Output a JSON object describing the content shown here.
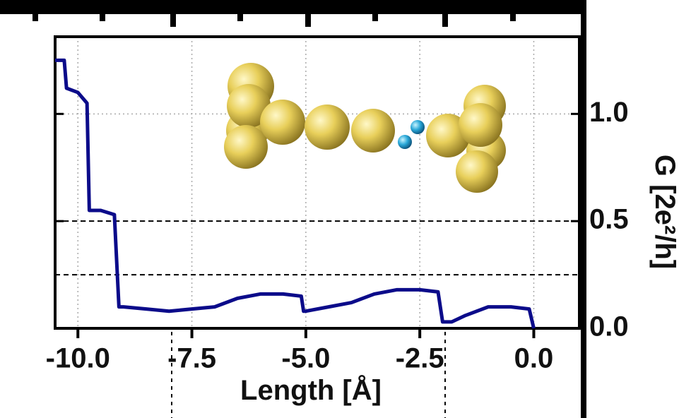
{
  "chart_data": {
    "type": "line",
    "x_label": "Length [Å]",
    "y_label": "G [2e²/h]",
    "x": [
      -10.5,
      -10.3,
      -10.25,
      -10.0,
      -9.8,
      -9.75,
      -9.5,
      -9.2,
      -9.1,
      -9.0,
      -8.5,
      -8.0,
      -7.5,
      -7.0,
      -6.5,
      -6.0,
      -5.5,
      -5.1,
      -5.05,
      -5.0,
      -4.5,
      -4.0,
      -3.5,
      -3.0,
      -2.5,
      -2.1,
      -2.0,
      -1.8,
      -1.5,
      -1.0,
      -0.5,
      -0.1,
      0.0
    ],
    "values": [
      1.25,
      1.25,
      1.12,
      1.1,
      1.05,
      0.55,
      0.55,
      0.53,
      0.1,
      0.1,
      0.09,
      0.08,
      0.09,
      0.1,
      0.14,
      0.16,
      0.16,
      0.15,
      0.08,
      0.08,
      0.1,
      0.12,
      0.16,
      0.18,
      0.18,
      0.17,
      0.03,
      0.03,
      0.06,
      0.1,
      0.1,
      0.09,
      0.0
    ],
    "color": "#0b0b8a",
    "xlim": [
      -10.5,
      1.0
    ],
    "ylim": [
      0,
      1.36
    ],
    "xticks": [
      {
        "value": -10,
        "label": "-10.0"
      },
      {
        "value": -7.5,
        "label": "-7.5"
      },
      {
        "value": -5,
        "label": "-5.0"
      },
      {
        "value": -2.5,
        "label": "-2.5"
      },
      {
        "value": 0,
        "label": "0.0"
      }
    ],
    "yticks": [
      {
        "value": 0,
        "label": "0.0"
      },
      {
        "value": 0.5,
        "label": "0.5"
      },
      {
        "value": 1,
        "label": "1.0"
      }
    ],
    "reference_lines": [
      0.5,
      0.25
    ],
    "grid": true
  }
}
